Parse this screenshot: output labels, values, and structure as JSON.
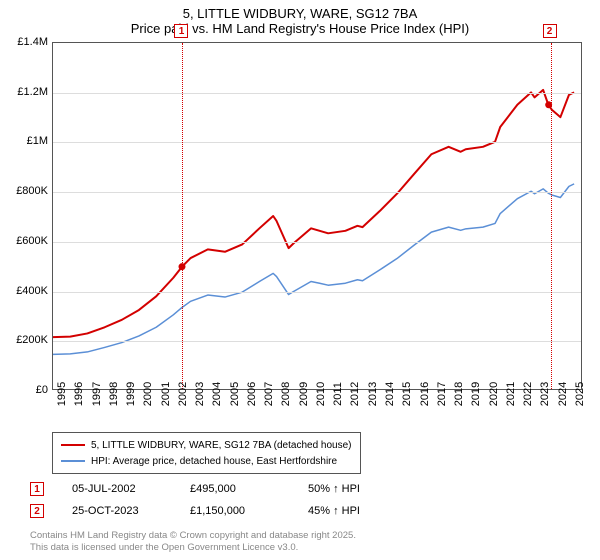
{
  "title": {
    "line1": "5, LITTLE WIDBURY, WARE, SG12 7BA",
    "line2": "Price paid vs. HM Land Registry's House Price Index (HPI)"
  },
  "chart": {
    "type": "line",
    "background_color": "#ffffff",
    "grid_color": "#dddddd",
    "border_color": "#555555",
    "xlim": [
      1995,
      2025.7
    ],
    "ylim": [
      0,
      1400000
    ],
    "xtick_step": 1,
    "xticks": [
      1995,
      1996,
      1997,
      1998,
      1999,
      2000,
      2001,
      2002,
      2003,
      2004,
      2005,
      2006,
      2007,
      2008,
      2009,
      2010,
      2011,
      2012,
      2013,
      2014,
      2015,
      2016,
      2017,
      2018,
      2019,
      2020,
      2021,
      2022,
      2023,
      2024,
      2025
    ],
    "yticks": [
      {
        "v": 0,
        "label": "£0"
      },
      {
        "v": 200000,
        "label": "£200K"
      },
      {
        "v": 400000,
        "label": "£400K"
      },
      {
        "v": 600000,
        "label": "£600K"
      },
      {
        "v": 800000,
        "label": "£800K"
      },
      {
        "v": 1000000,
        "label": "£1M"
      },
      {
        "v": 1200000,
        "label": "£1.2M"
      },
      {
        "v": 1400000,
        "label": "£1.4M"
      }
    ],
    "series": [
      {
        "name": "property",
        "label": "5, LITTLE WIDBURY, WARE, SG12 7BA (detached house)",
        "color": "#d30000",
        "line_width": 2,
        "data": [
          [
            1995,
            210000
          ],
          [
            1996,
            212000
          ],
          [
            1997,
            225000
          ],
          [
            1998,
            250000
          ],
          [
            1999,
            280000
          ],
          [
            2000,
            320000
          ],
          [
            2001,
            375000
          ],
          [
            2002,
            450000
          ],
          [
            2002.5,
            495000
          ],
          [
            2003,
            530000
          ],
          [
            2004,
            565000
          ],
          [
            2005,
            555000
          ],
          [
            2006,
            585000
          ],
          [
            2007,
            650000
          ],
          [
            2007.8,
            700000
          ],
          [
            2008,
            680000
          ],
          [
            2008.7,
            570000
          ],
          [
            2009,
            590000
          ],
          [
            2010,
            650000
          ],
          [
            2010.5,
            640000
          ],
          [
            2011,
            630000
          ],
          [
            2012,
            640000
          ],
          [
            2012.7,
            660000
          ],
          [
            2013,
            655000
          ],
          [
            2014,
            720000
          ],
          [
            2015,
            790000
          ],
          [
            2016,
            870000
          ],
          [
            2017,
            950000
          ],
          [
            2018,
            980000
          ],
          [
            2018.7,
            960000
          ],
          [
            2019,
            970000
          ],
          [
            2020,
            980000
          ],
          [
            2020.7,
            1000000
          ],
          [
            2021,
            1060000
          ],
          [
            2022,
            1150000
          ],
          [
            2022.8,
            1200000
          ],
          [
            2023,
            1180000
          ],
          [
            2023.5,
            1210000
          ],
          [
            2023.8,
            1150000
          ],
          [
            2024,
            1130000
          ],
          [
            2024.5,
            1100000
          ],
          [
            2025,
            1190000
          ],
          [
            2025.3,
            1200000
          ]
        ]
      },
      {
        "name": "hpi",
        "label": "HPI: Average price, detached house, East Hertfordshire",
        "color": "#5b8fd6",
        "line_width": 1.5,
        "data": [
          [
            1995,
            140000
          ],
          [
            1996,
            142000
          ],
          [
            1997,
            150000
          ],
          [
            1998,
            168000
          ],
          [
            1999,
            188000
          ],
          [
            2000,
            215000
          ],
          [
            2001,
            250000
          ],
          [
            2002,
            300000
          ],
          [
            2002.5,
            330000
          ],
          [
            2003,
            355000
          ],
          [
            2004,
            380000
          ],
          [
            2005,
            372000
          ],
          [
            2006,
            392000
          ],
          [
            2007,
            435000
          ],
          [
            2007.8,
            468000
          ],
          [
            2008,
            455000
          ],
          [
            2008.7,
            382000
          ],
          [
            2009,
            395000
          ],
          [
            2010,
            435000
          ],
          [
            2010.5,
            428000
          ],
          [
            2011,
            420000
          ],
          [
            2012,
            428000
          ],
          [
            2012.7,
            442000
          ],
          [
            2013,
            438000
          ],
          [
            2014,
            482000
          ],
          [
            2015,
            528000
          ],
          [
            2016,
            582000
          ],
          [
            2017,
            635000
          ],
          [
            2018,
            655000
          ],
          [
            2018.7,
            642000
          ],
          [
            2019,
            648000
          ],
          [
            2020,
            655000
          ],
          [
            2020.7,
            670000
          ],
          [
            2021,
            710000
          ],
          [
            2022,
            770000
          ],
          [
            2022.8,
            800000
          ],
          [
            2023,
            790000
          ],
          [
            2023.5,
            810000
          ],
          [
            2023.8,
            792000
          ],
          [
            2024,
            785000
          ],
          [
            2024.5,
            775000
          ],
          [
            2025,
            820000
          ],
          [
            2025.3,
            830000
          ]
        ]
      }
    ],
    "markers": [
      {
        "num": "1",
        "x": 2002.5,
        "y": 495000
      },
      {
        "num": "2",
        "x": 2023.82,
        "y": 1150000
      }
    ],
    "marker_color": "#d30000"
  },
  "legend": {
    "items": [
      {
        "color": "#d30000",
        "label": "5, LITTLE WIDBURY, WARE, SG12 7BA (detached house)"
      },
      {
        "color": "#5b8fd6",
        "label": "HPI: Average price, detached house, East Hertfordshire"
      }
    ]
  },
  "events": [
    {
      "num": "1",
      "date": "05-JUL-2002",
      "price": "£495,000",
      "hpi": "50% ↑ HPI"
    },
    {
      "num": "2",
      "date": "25-OCT-2023",
      "price": "£1,150,000",
      "hpi": "45% ↑ HPI"
    }
  ],
  "footer": {
    "line1": "Contains HM Land Registry data © Crown copyright and database right 2025.",
    "line2": "This data is licensed under the Open Government Licence v3.0."
  }
}
